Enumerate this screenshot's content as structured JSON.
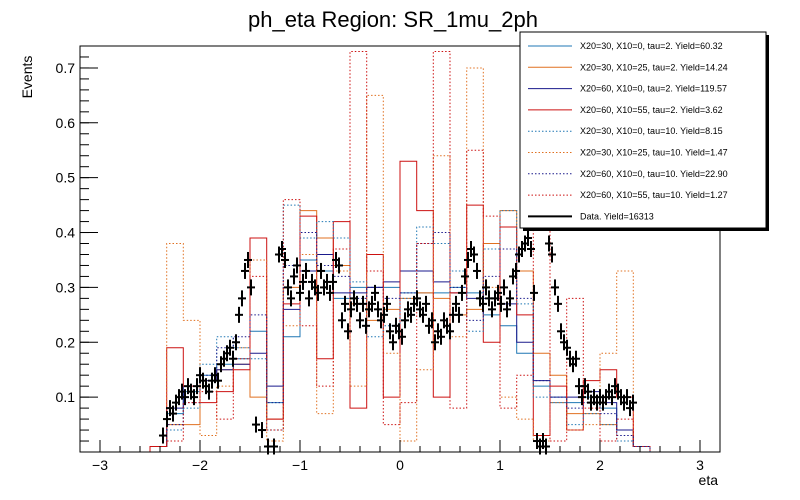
{
  "chart_data": {
    "type": "line",
    "title": "ph_eta Region: SR_1mu_2ph",
    "xlabel": "eta",
    "ylabel": "Events",
    "xlim": [
      -3.2,
      3.2
    ],
    "ylim": [
      0,
      0.74
    ],
    "x_ticks": [
      -3,
      -2,
      -1,
      0,
      1,
      2,
      3
    ],
    "y_ticks": [
      0.1,
      0.2,
      0.3,
      0.4,
      0.5,
      0.6,
      0.7
    ],
    "grid": false,
    "legend_position": "top-right",
    "bin_edges": [
      -2.5,
      -2.333,
      -2.167,
      -2.0,
      -1.833,
      -1.667,
      -1.5,
      -1.333,
      -1.167,
      -1.0,
      -0.833,
      -0.667,
      -0.5,
      -0.333,
      -0.167,
      0.0,
      0.167,
      0.333,
      0.5,
      0.667,
      0.833,
      1.0,
      1.167,
      1.333,
      1.5,
      1.667,
      1.833,
      2.0,
      2.167,
      2.333,
      2.5
    ],
    "series": [
      {
        "name": "X20=30, X10=0, tau=2. Yield=60.32",
        "color": "#1f77b4",
        "style": "solid",
        "values": [
          0.01,
          0.07,
          0.11,
          0.14,
          0.16,
          0.17,
          0.22,
          0.09,
          0.21,
          0.35,
          0.33,
          0.28,
          0.3,
          0.3,
          0.3,
          0.29,
          0.29,
          0.29,
          0.3,
          0.29,
          0.25,
          0.23,
          0.18,
          0.12,
          0.09,
          0.09,
          0.1,
          0.08,
          0.04,
          0.01
        ]
      },
      {
        "name": "X20=30, X10=25, tau=2. Yield=14.24",
        "color": "#e07020",
        "style": "solid",
        "values": [
          0.01,
          0.05,
          0.05,
          0.13,
          0.15,
          0.16,
          0.1,
          0.06,
          0.3,
          0.44,
          0.39,
          0.34,
          0.27,
          0.24,
          0.26,
          0.28,
          0.29,
          0.28,
          0.25,
          0.26,
          0.38,
          0.44,
          0.33,
          0.18,
          0.14,
          0.07,
          0.07,
          0.05,
          0.04,
          0.01
        ]
      },
      {
        "name": "X20=60, X10=0, tau=2. Yield=119.57",
        "color": "#1a1a8c",
        "style": "solid",
        "values": [
          0.01,
          0.08,
          0.12,
          0.13,
          0.15,
          0.16,
          0.18,
          0.12,
          0.26,
          0.33,
          0.36,
          0.29,
          0.29,
          0.3,
          0.31,
          0.33,
          0.33,
          0.31,
          0.29,
          0.28,
          0.28,
          0.27,
          0.2,
          0.13,
          0.1,
          0.1,
          0.11,
          0.09,
          0.04,
          0.01
        ]
      },
      {
        "name": "X20=60, X10=55, tau=2. Yield=3.62",
        "color": "#cc1111",
        "style": "solid",
        "values": [
          0.01,
          0.19,
          0.12,
          0.09,
          0.11,
          0.15,
          0.39,
          0.06,
          0.27,
          0.43,
          0.17,
          0.42,
          0.08,
          0.36,
          0.1,
          0.53,
          0.44,
          0.1,
          0.29,
          0.45,
          0.2,
          0.41,
          0.25,
          0.03,
          0.12,
          0.04,
          0.13,
          0.15,
          0.1,
          0.01
        ]
      },
      {
        "name": "X20=30, X10=0, tau=10. Yield=8.15",
        "color": "#1f77b4",
        "style": "dotted",
        "values": [
          0.01,
          0.04,
          0.08,
          0.16,
          0.21,
          0.19,
          0.17,
          0.04,
          0.45,
          0.39,
          0.42,
          0.39,
          0.31,
          0.21,
          0.23,
          0.28,
          0.41,
          0.38,
          0.33,
          0.22,
          0.37,
          0.44,
          0.27,
          0.1,
          0.1,
          0.05,
          0.07,
          0.05,
          0.02,
          0.01
        ]
      },
      {
        "name": "X20=30, X10=25, tau=10. Yield=1.47",
        "color": "#e07020",
        "style": "dotted",
        "values": [
          0.01,
          0.38,
          0.24,
          0.03,
          0.12,
          0.19,
          0.35,
          0.02,
          0.23,
          0.36,
          0.07,
          0.33,
          0.12,
          0.65,
          0.18,
          0.02,
          0.15,
          0.54,
          0.21,
          0.7,
          0.3,
          0.1,
          0.06,
          0.02,
          0.09,
          0.04,
          0.05,
          0.18,
          0.33,
          0.01
        ]
      },
      {
        "name": "X20=60, X10=0, tau=10. Yield=22.90",
        "color": "#1a1a8c",
        "style": "dotted",
        "values": [
          0.01,
          0.05,
          0.09,
          0.14,
          0.19,
          0.21,
          0.25,
          0.09,
          0.34,
          0.4,
          0.34,
          0.32,
          0.28,
          0.3,
          0.28,
          0.29,
          0.38,
          0.4,
          0.3,
          0.24,
          0.32,
          0.37,
          0.28,
          0.13,
          0.1,
          0.08,
          0.09,
          0.07,
          0.03,
          0.01
        ]
      },
      {
        "name": "X20=60, X10=55, tau=10. Yield=1.27",
        "color": "#cc1111",
        "style": "dotted",
        "values": [
          0.01,
          0.02,
          0.09,
          0.11,
          0.06,
          0.17,
          0.32,
          0.04,
          0.46,
          0.23,
          0.12,
          0.37,
          0.73,
          0.33,
          0.05,
          0.09,
          0.38,
          0.73,
          0.08,
          0.55,
          0.43,
          0.08,
          0.14,
          0.7,
          0.02,
          0.28,
          0.08,
          0.02,
          0.06,
          0.01
        ]
      }
    ],
    "data_series": {
      "name": "Data. Yield=16313",
      "color": "#000000",
      "points": [
        [
          -2.37,
          0.03
        ],
        [
          -2.33,
          0.06
        ],
        [
          -2.3,
          0.08
        ],
        [
          -2.27,
          0.07
        ],
        [
          -2.24,
          0.09
        ],
        [
          -2.21,
          0.1
        ],
        [
          -2.18,
          0.11
        ],
        [
          -2.15,
          0.1
        ],
        [
          -2.12,
          0.12
        ],
        [
          -2.09,
          0.11
        ],
        [
          -2.06,
          0.1
        ],
        [
          -2.03,
          0.12
        ],
        [
          -2.0,
          0.14
        ],
        [
          -1.97,
          0.13
        ],
        [
          -1.94,
          0.12
        ],
        [
          -1.91,
          0.11
        ],
        [
          -1.88,
          0.13
        ],
        [
          -1.85,
          0.14
        ],
        [
          -1.82,
          0.13
        ],
        [
          -1.79,
          0.16
        ],
        [
          -1.76,
          0.17
        ],
        [
          -1.73,
          0.18
        ],
        [
          -1.7,
          0.19
        ],
        [
          -1.67,
          0.17
        ],
        [
          -1.64,
          0.2
        ],
        [
          -1.61,
          0.25
        ],
        [
          -1.58,
          0.28
        ],
        [
          -1.55,
          0.33
        ],
        [
          -1.52,
          0.35
        ],
        [
          -1.49,
          0.3
        ],
        [
          -1.44,
          0.05
        ],
        [
          -1.38,
          0.04
        ],
        [
          -1.32,
          0.01
        ],
        [
          -1.26,
          0.01
        ],
        [
          -1.21,
          0.36
        ],
        [
          -1.18,
          0.37
        ],
        [
          -1.15,
          0.35
        ],
        [
          -1.12,
          0.3
        ],
        [
          -1.09,
          0.28
        ],
        [
          -1.06,
          0.32
        ],
        [
          -1.03,
          0.34
        ],
        [
          -1.0,
          0.29
        ],
        [
          -0.97,
          0.31
        ],
        [
          -0.94,
          0.33
        ],
        [
          -0.91,
          0.28
        ],
        [
          -0.88,
          0.31
        ],
        [
          -0.85,
          0.3
        ],
        [
          -0.82,
          0.29
        ],
        [
          -0.79,
          0.33
        ],
        [
          -0.76,
          0.3
        ],
        [
          -0.73,
          0.31
        ],
        [
          -0.7,
          0.29
        ],
        [
          -0.67,
          0.31
        ],
        [
          -0.64,
          0.35
        ],
        [
          -0.61,
          0.34
        ],
        [
          -0.58,
          0.24
        ],
        [
          -0.55,
          0.27
        ],
        [
          -0.52,
          0.22
        ],
        [
          -0.49,
          0.26
        ],
        [
          -0.46,
          0.28
        ],
        [
          -0.43,
          0.27
        ],
        [
          -0.4,
          0.24
        ],
        [
          -0.37,
          0.27
        ],
        [
          -0.34,
          0.23
        ],
        [
          -0.31,
          0.26
        ],
        [
          -0.28,
          0.27
        ],
        [
          -0.25,
          0.29
        ],
        [
          -0.22,
          0.26
        ],
        [
          -0.19,
          0.24
        ],
        [
          -0.16,
          0.25
        ],
        [
          -0.13,
          0.27
        ],
        [
          -0.1,
          0.22
        ],
        [
          -0.07,
          0.2
        ],
        [
          -0.04,
          0.23
        ],
        [
          -0.01,
          0.22
        ],
        [
          0.02,
          0.21
        ],
        [
          0.05,
          0.24
        ],
        [
          0.08,
          0.26
        ],
        [
          0.11,
          0.25
        ],
        [
          0.14,
          0.27
        ],
        [
          0.17,
          0.28
        ],
        [
          0.2,
          0.26
        ],
        [
          0.23,
          0.25
        ],
        [
          0.26,
          0.27
        ],
        [
          0.29,
          0.23
        ],
        [
          0.32,
          0.24
        ],
        [
          0.35,
          0.2
        ],
        [
          0.38,
          0.22
        ],
        [
          0.41,
          0.21
        ],
        [
          0.44,
          0.24
        ],
        [
          0.47,
          0.23
        ],
        [
          0.5,
          0.22
        ],
        [
          0.53,
          0.25
        ],
        [
          0.56,
          0.27
        ],
        [
          0.59,
          0.25
        ],
        [
          0.62,
          0.29
        ],
        [
          0.65,
          0.32
        ],
        [
          0.68,
          0.35
        ],
        [
          0.71,
          0.37
        ],
        [
          0.74,
          0.36
        ],
        [
          0.77,
          0.33
        ],
        [
          0.8,
          0.28
        ],
        [
          0.83,
          0.27
        ],
        [
          0.86,
          0.3
        ],
        [
          0.89,
          0.28
        ],
        [
          0.92,
          0.26
        ],
        [
          0.95,
          0.28
        ],
        [
          0.98,
          0.29
        ],
        [
          1.01,
          0.27
        ],
        [
          1.04,
          0.3
        ],
        [
          1.07,
          0.26
        ],
        [
          1.1,
          0.28
        ],
        [
          1.13,
          0.32
        ],
        [
          1.16,
          0.33
        ],
        [
          1.19,
          0.36
        ],
        [
          1.22,
          0.37
        ],
        [
          1.25,
          0.38
        ],
        [
          1.28,
          0.39
        ],
        [
          1.31,
          0.37
        ],
        [
          1.34,
          0.29
        ],
        [
          1.37,
          0.02
        ],
        [
          1.4,
          0.01
        ],
        [
          1.43,
          0.02
        ],
        [
          1.46,
          0.01
        ],
        [
          1.49,
          0.38
        ],
        [
          1.52,
          0.36
        ],
        [
          1.55,
          0.3
        ],
        [
          1.58,
          0.27
        ],
        [
          1.61,
          0.22
        ],
        [
          1.64,
          0.2
        ],
        [
          1.67,
          0.19
        ],
        [
          1.7,
          0.17
        ],
        [
          1.73,
          0.16
        ],
        [
          1.76,
          0.17
        ],
        [
          1.79,
          0.12
        ],
        [
          1.82,
          0.1
        ],
        [
          1.85,
          0.12
        ],
        [
          1.88,
          0.11
        ],
        [
          1.91,
          0.09
        ],
        [
          1.94,
          0.1
        ],
        [
          1.97,
          0.09
        ],
        [
          2.0,
          0.1
        ],
        [
          2.03,
          0.09
        ],
        [
          2.06,
          0.1
        ],
        [
          2.09,
          0.11
        ],
        [
          2.12,
          0.1
        ],
        [
          2.15,
          0.12
        ],
        [
          2.18,
          0.11
        ],
        [
          2.21,
          0.1
        ],
        [
          2.24,
          0.09
        ],
        [
          2.27,
          0.1
        ],
        [
          2.3,
          0.08
        ],
        [
          2.33,
          0.09
        ]
      ]
    }
  }
}
